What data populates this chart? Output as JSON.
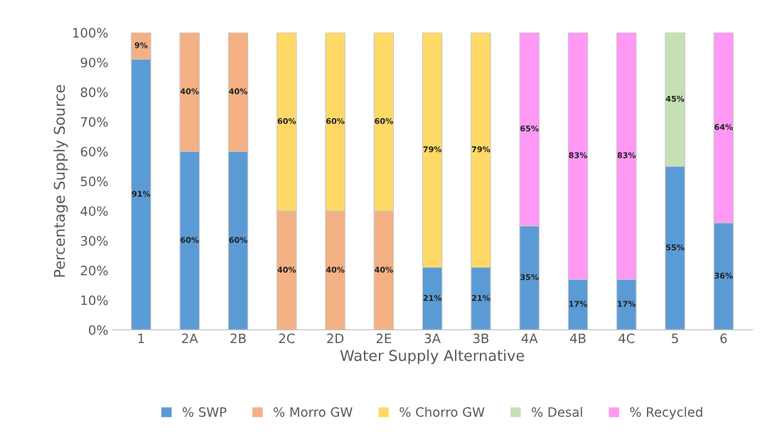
{
  "chart_data": {
    "type": "bar",
    "stacked": true,
    "xlabel": "Water Supply Alternative",
    "ylabel": "Percentage Supply Source",
    "categories": [
      "1",
      "2A",
      "2B",
      "2C",
      "2D",
      "2E",
      "3A",
      "3B",
      "4A",
      "4B",
      "4C",
      "5",
      "6"
    ],
    "series": [
      {
        "name": "% SWP",
        "color": "#5b9bd5",
        "values": [
          91,
          60,
          60,
          null,
          null,
          null,
          21,
          21,
          35,
          17,
          17,
          55,
          36
        ],
        "value_labels": [
          "91%",
          "60%",
          "60%",
          null,
          null,
          null,
          "21%",
          "21%",
          "35%",
          "17%",
          "17%",
          "55%",
          "36%"
        ]
      },
      {
        "name": "% Morro GW",
        "color": "#f4b183",
        "values": [
          9,
          40,
          40,
          40,
          40,
          40,
          null,
          null,
          null,
          null,
          null,
          null,
          null
        ],
        "value_labels": [
          "9%",
          "40%",
          "40%",
          "40%",
          "40%",
          "40%",
          null,
          null,
          null,
          null,
          null,
          null,
          null
        ]
      },
      {
        "name": "% Chorro GW",
        "color": "#ffd966",
        "values": [
          null,
          null,
          null,
          60,
          60,
          60,
          79,
          79,
          null,
          null,
          null,
          null,
          null
        ],
        "value_labels": [
          null,
          null,
          null,
          "60%",
          "60%",
          "60%",
          "79%",
          "79%",
          null,
          null,
          null,
          null,
          null
        ]
      },
      {
        "name": "% Desal",
        "color": "#c5e0b4",
        "values": [
          null,
          null,
          null,
          null,
          null,
          null,
          null,
          null,
          null,
          null,
          null,
          45,
          null
        ],
        "value_labels": [
          null,
          null,
          null,
          null,
          null,
          null,
          null,
          null,
          null,
          null,
          null,
          "45%",
          null
        ]
      },
      {
        "name": "% Recycled",
        "color": "#ff99f5",
        "values": [
          null,
          null,
          null,
          null,
          null,
          null,
          null,
          null,
          65,
          83,
          83,
          null,
          64
        ],
        "value_labels": [
          null,
          null,
          null,
          null,
          null,
          null,
          null,
          null,
          "65%",
          "83%",
          "83%",
          null,
          "64%"
        ]
      }
    ],
    "ylim": [
      0,
      100
    ],
    "yticks": [
      {
        "value": 0,
        "label": "0%"
      },
      {
        "value": 10,
        "label": "10%"
      },
      {
        "value": 20,
        "label": "20%"
      },
      {
        "value": 30,
        "label": "30%"
      },
      {
        "value": 40,
        "label": "40%"
      },
      {
        "value": 50,
        "label": "50%"
      },
      {
        "value": 60,
        "label": "60%"
      },
      {
        "value": 70,
        "label": "70%"
      },
      {
        "value": 80,
        "label": "80%"
      },
      {
        "value": 90,
        "label": "90%"
      },
      {
        "value": 100,
        "label": "100%"
      }
    ],
    "grid": false,
    "legend": "bottom"
  }
}
